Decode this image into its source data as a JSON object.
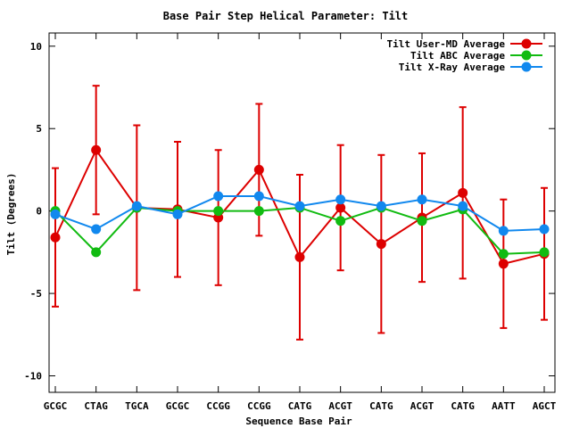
{
  "chart_data": {
    "type": "line",
    "title": "Base Pair Step Helical Parameter: Tilt",
    "xlabel": "Sequence Base Pair",
    "ylabel": "Tilt (Degrees)",
    "categories": [
      "GCGC",
      "CTAG",
      "TGCA",
      "GCGC",
      "CCGG",
      "CCGG",
      "CATG",
      "ACGT",
      "CATG",
      "ACGT",
      "CATG",
      "AATT",
      "AGCT"
    ],
    "ylim": [
      -11,
      10.8
    ],
    "yticks": [
      10,
      5,
      0,
      -5,
      -10
    ],
    "grid": false,
    "legend_position": "top-right",
    "series": [
      {
        "name": "Tilt User-MD Average",
        "color": "#dd0000",
        "values": [
          -1.6,
          3.7,
          0.2,
          0.1,
          -0.4,
          2.5,
          -2.8,
          0.2,
          -2.0,
          -0.4,
          1.1,
          -3.2,
          -2.6
        ],
        "error": [
          4.2,
          3.9,
          5.0,
          4.1,
          4.1,
          4.0,
          5.0,
          3.8,
          5.4,
          3.9,
          5.2,
          3.9,
          4.0
        ]
      },
      {
        "name": "Tilt ABC Average",
        "color": "#11bb11",
        "values": [
          0.0,
          -2.5,
          0.2,
          0.0,
          0.0,
          0.0,
          0.2,
          -0.6,
          0.2,
          -0.6,
          0.1,
          -2.6,
          -2.5
        ]
      },
      {
        "name": "Tilt X-Ray Average",
        "color": "#1188ee",
        "values": [
          -0.2,
          -1.1,
          0.3,
          -0.2,
          0.9,
          0.9,
          0.3,
          0.7,
          0.3,
          0.7,
          0.3,
          -1.2,
          -1.1
        ]
      }
    ]
  }
}
